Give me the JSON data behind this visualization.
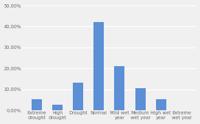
{
  "categories": [
    "Extreme\ndrought",
    "High\ndrought",
    "Drought",
    "Normal",
    "Mild wet\nyear",
    "Medium\nwet year",
    "High wet\nyear",
    "Extreme\nwet year"
  ],
  "values": [
    5.26,
    2.63,
    13.16,
    42.11,
    21.05,
    10.53,
    5.26,
    0.0
  ],
  "bar_color": "#5b8fd6",
  "ylim": [
    0,
    50
  ],
  "yticks": [
    0,
    10,
    20,
    30,
    40,
    50
  ],
  "ytick_labels": [
    "0.00%",
    "10.00%",
    "20.00%",
    "30.00%",
    "40.00%",
    "50.00%"
  ],
  "background_color": "#f0f0f0",
  "grid_color": "#ffffff",
  "tick_label_fontsize": 4.8,
  "bar_width": 0.5,
  "xlim_left": -0.7,
  "xlim_right": 7.7
}
